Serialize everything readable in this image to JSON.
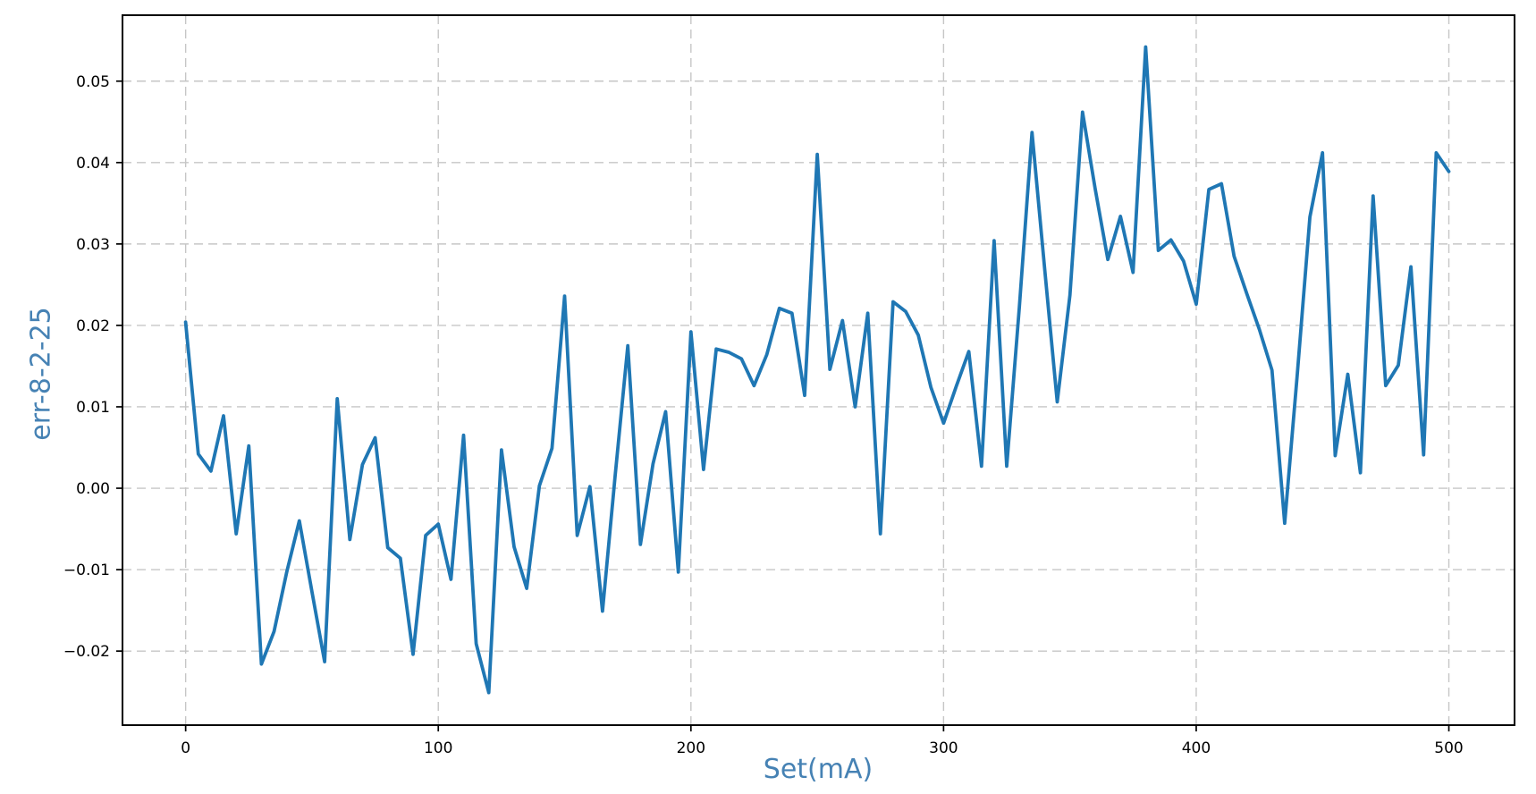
{
  "figure": {
    "background": "#ffffff"
  },
  "chart_data": {
    "type": "line",
    "title": "",
    "xlabel": "Set(mA)",
    "ylabel": "err-8-2-25",
    "axis_label_color": "#4682b4",
    "line_color": "#1f77b4",
    "tick_label_color": "#000000",
    "grid": true,
    "grid_color": "#c6c6c6",
    "grid_style": "dashed",
    "legend": "none",
    "xlim": [
      -25,
      526
    ],
    "ylim": [
      -0.0291,
      0.0581
    ],
    "xticks": [
      0,
      100,
      200,
      300,
      400,
      500
    ],
    "yticks": [
      -0.02,
      -0.01,
      0.0,
      0.01,
      0.02,
      0.03,
      0.04,
      0.05
    ],
    "x": [
      0,
      5,
      10,
      15,
      20,
      25,
      30,
      35,
      40,
      45,
      50,
      55,
      60,
      65,
      70,
      75,
      80,
      85,
      90,
      95,
      100,
      105,
      110,
      115,
      120,
      125,
      130,
      135,
      140,
      145,
      150,
      155,
      160,
      165,
      170,
      175,
      180,
      185,
      190,
      195,
      200,
      205,
      210,
      215,
      220,
      225,
      230,
      235,
      240,
      245,
      250,
      255,
      260,
      265,
      270,
      275,
      280,
      285,
      290,
      295,
      300,
      305,
      310,
      315,
      320,
      325,
      330,
      335,
      340,
      345,
      350,
      355,
      360,
      365,
      370,
      375,
      380,
      385,
      390,
      395,
      400,
      405,
      410,
      415,
      420,
      425,
      430,
      435,
      440,
      445,
      450,
      455,
      460,
      465,
      470,
      475,
      480,
      485,
      490,
      495,
      500
    ],
    "y": [
      0.0204,
      0.0042,
      0.0021,
      0.0089,
      -0.0056,
      0.0052,
      -0.0216,
      -0.0176,
      -0.0103,
      -0.004,
      -0.0127,
      -0.0213,
      0.011,
      -0.0063,
      0.0029,
      0.0062,
      -0.0073,
      -0.0086,
      -0.0204,
      -0.0058,
      -0.0044,
      -0.0112,
      0.0065,
      -0.0191,
      -0.0251,
      0.0047,
      -0.0072,
      -0.0123,
      0.0003,
      0.0049,
      0.0236,
      -0.0058,
      0.0002,
      -0.0151,
      0.0015,
      0.0175,
      -0.0069,
      0.003,
      0.0094,
      -0.0103,
      0.0192,
      0.0023,
      0.0171,
      0.0167,
      0.0159,
      0.0126,
      0.0164,
      0.0221,
      0.0215,
      0.0114,
      0.041,
      0.0146,
      0.0206,
      0.01,
      0.0215,
      -0.0056,
      0.0229,
      0.0217,
      0.0188,
      0.0124,
      0.008,
      0.0125,
      0.0168,
      0.0027,
      0.0304,
      0.0027,
      0.0222,
      0.0437,
      0.027,
      0.0106,
      0.0237,
      0.0462,
      0.0368,
      0.0281,
      0.0334,
      0.0265,
      0.0542,
      0.0292,
      0.0305,
      0.0279,
      0.0226,
      0.0367,
      0.0374,
      0.0285,
      0.0239,
      0.0195,
      0.0145,
      -0.0043,
      0.014,
      0.0333,
      0.0412,
      0.004,
      0.014,
      0.0019,
      0.0359,
      0.0126,
      0.0151,
      0.0272,
      0.0041,
      0.0412,
      0.0389
    ]
  }
}
